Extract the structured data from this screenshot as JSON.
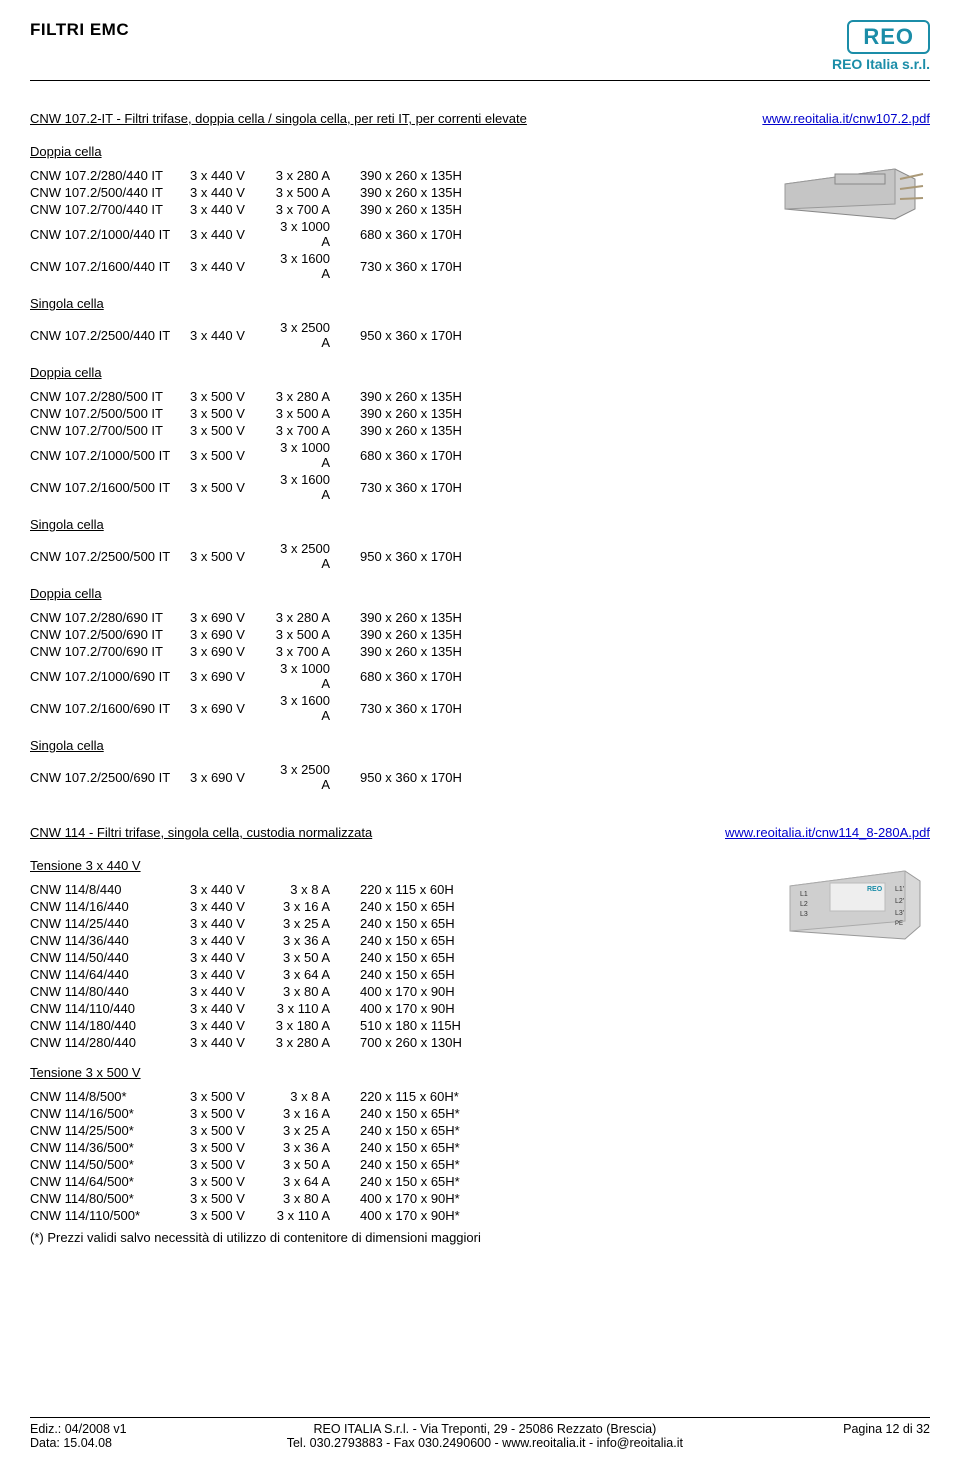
{
  "header": {
    "title": "FILTRI EMC",
    "logo_main": "REO",
    "logo_sub": "REO Italia s.r.l."
  },
  "colors": {
    "brand": "#1b8da8",
    "link": "#0000cc"
  },
  "section1": {
    "heading": "CNW 107.2-IT - Filtri trifase, doppia cella / singola cella, per reti IT, per correnti elevate",
    "link": "www.reoitalia.it/cnw107.2.pdf",
    "groups": [
      {
        "label": "Doppia cella",
        "rows": [
          {
            "m": "CNW 107.2/280/440 IT",
            "v": "3 x 440 V",
            "a": "3 x 280 A",
            "d": "390 x 260 x 135H"
          },
          {
            "m": "CNW 107.2/500/440 IT",
            "v": "3 x 440 V",
            "a": "3 x 500 A",
            "d": "390 x 260 x 135H"
          },
          {
            "m": "CNW 107.2/700/440 IT",
            "v": "3 x 440 V",
            "a": "3 x 700 A",
            "d": "390 x 260 x 135H"
          },
          {
            "m": "CNW 107.2/1000/440 IT",
            "v": "3 x 440 V",
            "a": "3 x 1000 A",
            "d": "680 x 360 x 170H"
          },
          {
            "m": "CNW 107.2/1600/440 IT",
            "v": "3 x 440 V",
            "a": "3 x 1600 A",
            "d": "730 x 360 x 170H"
          }
        ]
      },
      {
        "label": "Singola cella",
        "rows": [
          {
            "m": "CNW 107.2/2500/440 IT",
            "v": "3 x 440 V",
            "a": "3 x 2500 A",
            "d": "950 x 360 x 170H"
          }
        ]
      },
      {
        "label": "Doppia cella",
        "rows": [
          {
            "m": "CNW 107.2/280/500 IT",
            "v": "3 x 500 V",
            "a": "3 x 280 A",
            "d": "390 x 260 x 135H"
          },
          {
            "m": "CNW 107.2/500/500 IT",
            "v": "3 x 500 V",
            "a": "3 x 500 A",
            "d": "390 x 260 x 135H"
          },
          {
            "m": "CNW 107.2/700/500 IT",
            "v": "3 x 500 V",
            "a": "3 x 700 A",
            "d": "390 x 260 x 135H"
          },
          {
            "m": "CNW 107.2/1000/500 IT",
            "v": "3 x 500 V",
            "a": "3 x 1000 A",
            "d": "680 x 360 x 170H"
          },
          {
            "m": "CNW 107.2/1600/500 IT",
            "v": "3 x 500 V",
            "a": "3 x 1600 A",
            "d": "730 x 360 x 170H"
          }
        ]
      },
      {
        "label": "Singola cella",
        "rows": [
          {
            "m": "CNW 107.2/2500/500 IT",
            "v": "3 x 500 V",
            "a": "3 x 2500 A",
            "d": "950 x 360 x 170H"
          }
        ]
      },
      {
        "label": "Doppia cella",
        "rows": [
          {
            "m": "CNW 107.2/280/690 IT",
            "v": "3 x 690 V",
            "a": "3 x 280 A",
            "d": "390 x 260 x 135H"
          },
          {
            "m": "CNW 107.2/500/690 IT",
            "v": "3 x 690 V",
            "a": "3 x 500 A",
            "d": "390 x 260 x 135H"
          },
          {
            "m": "CNW 107.2/700/690 IT",
            "v": "3 x 690 V",
            "a": "3 x 700 A",
            "d": "390 x 260 x 135H"
          },
          {
            "m": "CNW 107.2/1000/690 IT",
            "v": "3 x 690 V",
            "a": "3 x 1000 A",
            "d": "680 x 360 x 170H"
          },
          {
            "m": "CNW 107.2/1600/690 IT",
            "v": "3 x 690 V",
            "a": "3 x 1600 A",
            "d": "730 x 360 x 170H"
          }
        ]
      },
      {
        "label": "Singola cella",
        "rows": [
          {
            "m": "CNW 107.2/2500/690 IT",
            "v": "3 x 690 V",
            "a": "3 x 2500 A",
            "d": "950 x 360 x 170H"
          }
        ]
      }
    ]
  },
  "section2": {
    "heading": "CNW 114 - Filtri trifase, singola cella, custodia normalizzata",
    "link": "www.reoitalia.it/cnw114_8-280A.pdf",
    "groups": [
      {
        "label": "Tensione 3 x 440 V",
        "rows": [
          {
            "m": "CNW 114/8/440",
            "v": "3 x 440 V",
            "a": "3 x 8 A",
            "d": "220 x 115 x 60H"
          },
          {
            "m": "CNW 114/16/440",
            "v": "3 x 440 V",
            "a": "3 x 16 A",
            "d": "240 x 150 x 65H"
          },
          {
            "m": "CNW 114/25/440",
            "v": "3 x 440 V",
            "a": "3 x 25 A",
            "d": "240 x 150 x 65H"
          },
          {
            "m": "CNW 114/36/440",
            "v": "3 x 440 V",
            "a": "3 x 36 A",
            "d": "240 x 150 x 65H"
          },
          {
            "m": "CNW 114/50/440",
            "v": "3 x 440 V",
            "a": "3 x 50 A",
            "d": "240 x 150 x 65H"
          },
          {
            "m": "CNW 114/64/440",
            "v": "3 x 440 V",
            "a": "3 x 64 A",
            "d": "240 x 150 x 65H"
          },
          {
            "m": "CNW 114/80/440",
            "v": "3 x 440 V",
            "a": "3 x 80 A",
            "d": "400 x 170 x 90H"
          },
          {
            "m": "CNW 114/110/440",
            "v": "3 x 440 V",
            "a": "3 x 110 A",
            "d": "400 x 170 x 90H"
          },
          {
            "m": "CNW 114/180/440",
            "v": "3 x 440 V",
            "a": "3 x 180 A",
            "d": "510 x 180 x 115H"
          },
          {
            "m": "CNW 114/280/440",
            "v": "3 x 440 V",
            "a": "3 x 280 A",
            "d": "700 x 260 x 130H"
          }
        ]
      },
      {
        "label": "Tensione 3 x 500 V",
        "rows": [
          {
            "m": "CNW 114/8/500*",
            "v": "3 x 500 V",
            "a": "3 x 8 A",
            "d": "220 x 115 x 60H*"
          },
          {
            "m": "CNW 114/16/500*",
            "v": "3 x 500 V",
            "a": "3 x 16 A",
            "d": "240 x 150 x 65H*"
          },
          {
            "m": "CNW 114/25/500*",
            "v": "3 x 500 V",
            "a": "3 x 25 A",
            "d": "240 x 150 x 65H*"
          },
          {
            "m": "CNW 114/36/500*",
            "v": "3 x 500 V",
            "a": "3 x 36 A",
            "d": "240 x 150 x 65H*"
          },
          {
            "m": "CNW 114/50/500*",
            "v": "3 x 500 V",
            "a": "3 x 50 A",
            "d": "240 x 150 x 65H*"
          },
          {
            "m": "CNW 114/64/500*",
            "v": "3 x 500 V",
            "a": "3 x 64 A",
            "d": "240 x 150 x 65H*"
          },
          {
            "m": "CNW 114/80/500*",
            "v": "3 x 500 V",
            "a": "3 x 80 A",
            "d": "400 x 170 x 90H*"
          },
          {
            "m": "CNW 114/110/500*",
            "v": "3 x 500 V",
            "a": "3 x 110 A",
            "d": "400 x 170 x 90H*"
          }
        ]
      }
    ],
    "footnote": "(*) Prezzi validi salvo necessità di utilizzo di contenitore di dimensioni maggiori"
  },
  "footer": {
    "left1": "Ediz.: 04/2008  v1",
    "left2": "Data: 15.04.08",
    "center1": "REO ITALIA S.r.l. - Via Treponti, 29 - 25086 Rezzato (Brescia)",
    "center2": "Tel. 030.2793883 - Fax 030.2490600 - www.reoitalia.it - info@reoitalia.it",
    "right": "Pagina 12 di 32"
  }
}
